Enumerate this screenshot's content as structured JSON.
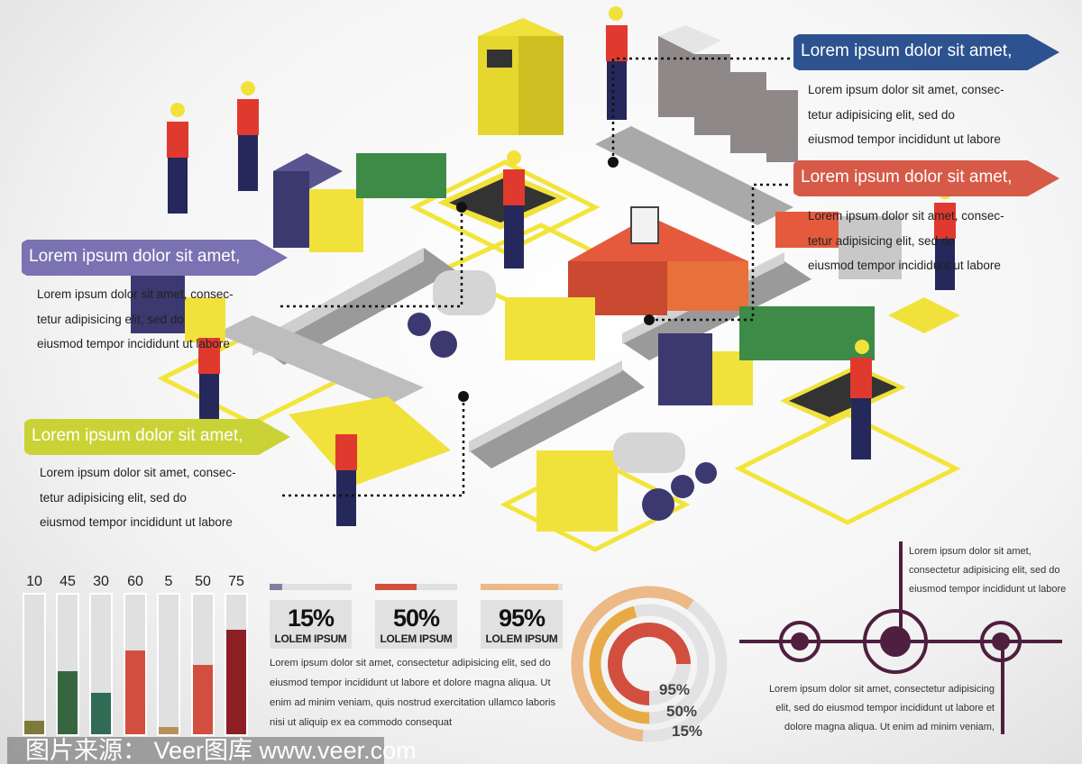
{
  "callouts": [
    {
      "title": "Lorem ipsum dolor sit amet,",
      "lines": [
        "Lorem ipsum dolor sit amet, consec-",
        "tetur adipisicing elit, sed do",
        "eiusmod tempor incididunt ut labore"
      ],
      "color": "#2d5290"
    },
    {
      "title": "Lorem ipsum dolor sit amet,",
      "lines": [
        "Lorem ipsum dolor sit amet, consec-",
        "tetur adipisicing elit, sed do",
        "eiusmod tempor incididunt ut labore"
      ],
      "color": "#d65a47"
    },
    {
      "title": "Lorem ipsum dolor sit amet,",
      "lines": [
        "Lorem ipsum dolor sit amet, consec-",
        "tetur adipisicing elit, sed do",
        "eiusmod tempor incididunt ut labore"
      ],
      "color": "#7b72b2"
    },
    {
      "title": "Lorem ipsum dolor sit amet,",
      "lines": [
        "Lorem ipsum dolor sit amet, consec-",
        "tetur adipisicing elit, sed do",
        "eiusmod tempor incididunt ut labore"
      ],
      "color": "#c9d336"
    }
  ],
  "bar_chart": {
    "values": [
      10,
      45,
      30,
      60,
      5,
      50,
      75
    ],
    "max": 100,
    "colors": [
      "#7e7a3b",
      "#356640",
      "#2f6b55",
      "#d24f3f",
      "#b8915a",
      "#d24f3f",
      "#8c1f24"
    ]
  },
  "percent_boxes": [
    {
      "value": "15%",
      "label": "LOLEM IPSUM",
      "fraction": 0.15,
      "color": "#7f7fa0"
    },
    {
      "value": "50%",
      "label": "LOLEM IPSUM",
      "fraction": 0.5,
      "color": "#d24f3f"
    },
    {
      "value": "95%",
      "label": "LOLEM IPSUM",
      "fraction": 0.95,
      "color": "#ecb987"
    }
  ],
  "percent_paragraph": [
    "Lorem ipsum dolor sit amet, consectetur adipisicing elit, sed do",
    "eiusmod tempor incididunt ut labore et dolore magna aliqua. Ut",
    "enim ad minim veniam, quis nostrud exercitation ullamco laboris",
    "nisi ut aliquip ex ea commodo consequat"
  ],
  "donut": {
    "labels": [
      "95%",
      "50%",
      "15%"
    ],
    "colors": [
      "#d24f3f",
      "#e8aa45",
      "#ecb987"
    ],
    "track": "#e2e2e2"
  },
  "timeline": {
    "color": "#4f1f3f",
    "top_text": [
      "Lorem ipsum dolor sit amet,",
      "consectetur adipisicing elit, sed do",
      "eiusmod tempor incididunt ut labore"
    ],
    "bottom_text": [
      "Lorem ipsum dolor sit amet, consectetur adipisicing",
      "elit, sed do eiusmod tempor incididunt ut labore et",
      "dolore magna aliqua. Ut enim ad minim veniam,"
    ]
  },
  "watermark": "图片来源： Veer图库 www.veer.com"
}
